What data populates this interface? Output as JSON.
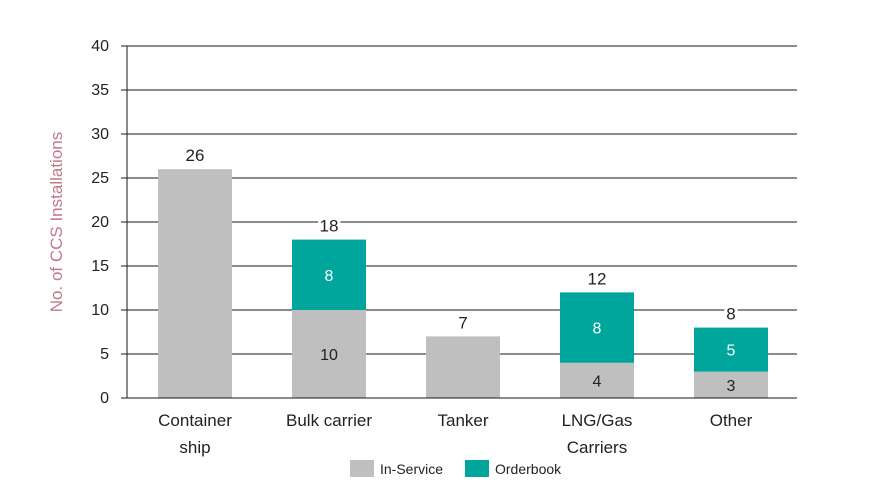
{
  "chart_data": {
    "type": "bar",
    "stacked": true,
    "title": "",
    "xlabel": "",
    "ylabel": "No. of CCS Installations",
    "ylim": [
      0,
      40
    ],
    "yticks": [
      0,
      5,
      10,
      15,
      20,
      25,
      30,
      35,
      40
    ],
    "grid": true,
    "legend_position": "bottom",
    "categories": [
      "Container ship",
      "Bulk carrier",
      "Tanker",
      "LNG/Gas Carriers",
      "Other"
    ],
    "category_lines": [
      [
        "Container",
        "ship"
      ],
      [
        "Bulk carrier"
      ],
      [
        "Tanker"
      ],
      [
        "LNG/Gas",
        "Carriers"
      ],
      [
        "Other"
      ]
    ],
    "series": [
      {
        "name": "In-Service",
        "values": [
          26,
          10,
          7,
          4,
          3
        ],
        "color": "#bfbfbf"
      },
      {
        "name": "Orderbook",
        "values": [
          0,
          8,
          0,
          8,
          5
        ],
        "color": "#00a59b"
      }
    ],
    "totals": [
      26,
      18,
      7,
      12,
      8
    ],
    "segment_label_colors": {
      "In-Service": "#222222",
      "Orderbook": "#ffffff"
    },
    "ylabel_color": "#c07a8a"
  }
}
